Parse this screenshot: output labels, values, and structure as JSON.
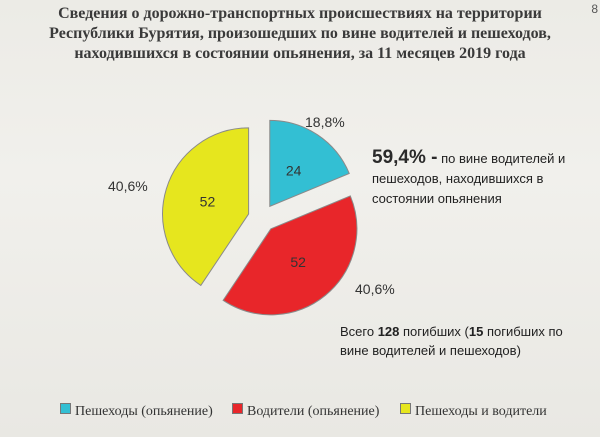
{
  "title": {
    "line1": "Сведения о дорожно-транспортных  происшествиях на территории",
    "line2": "Республики Бурятия, произошедших по вине водителей и пешеходов,",
    "line3": "находившихся в состоянии опьянения, за 11 месяцев 2019 года"
  },
  "page_corner": "8",
  "note_main": {
    "highlight": "59,4% -",
    "text": "по вине водителей и пешеходов, находившихся в состоянии опьянения"
  },
  "note_total": {
    "prefix": "Всего ",
    "total": "128",
    "middle": " погибших (",
    "sub_count": "15",
    "suffix": " погибших по вине водителей и пешеходов)"
  },
  "colors": {
    "pedestrians": "#33bfd3",
    "drivers": "#e8262a",
    "both": "#e6e61e"
  },
  "chart_data": {
    "type": "pie",
    "exploded": true,
    "legend_position": "bottom",
    "series": [
      {
        "name": "Пешеходы (опьянение)",
        "value": 24,
        "label": "24",
        "percent": "18,8%",
        "color": "#33bfd3"
      },
      {
        "name": "Водители (опьянение)",
        "value": 52,
        "label": "52",
        "percent": "40,6%",
        "color": "#e8262a"
      },
      {
        "name": "Пешеходы и водители",
        "value": 52,
        "label": "52",
        "percent": "40,6%",
        "color": "#e6e61e"
      }
    ]
  }
}
